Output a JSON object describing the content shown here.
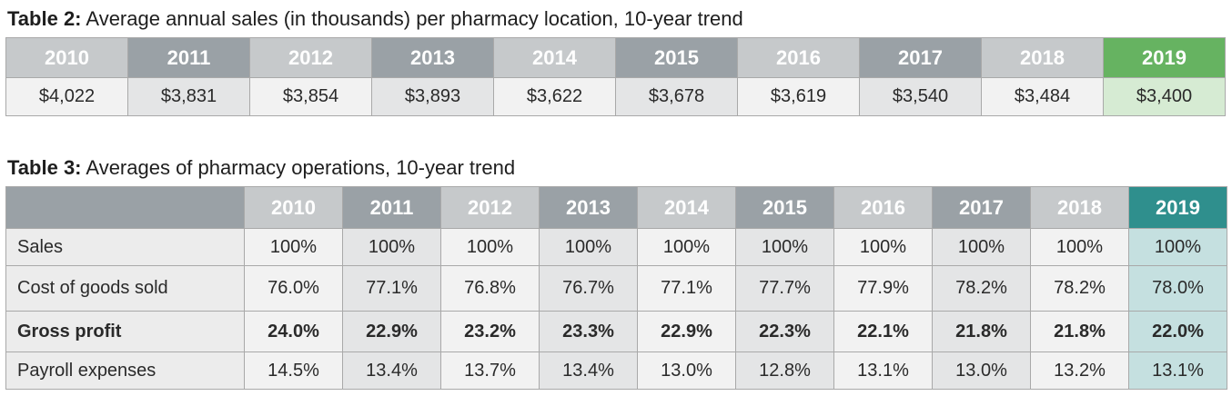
{
  "table2": {
    "caption_label": "Table 2:",
    "caption_text": " Average annual sales (in thousands) per pharmacy location, 10-year trend",
    "years": [
      "2010",
      "2011",
      "2012",
      "2013",
      "2014",
      "2015",
      "2016",
      "2017",
      "2018",
      "2019"
    ],
    "values": [
      "$4,022",
      "$3,831",
      "$3,854",
      "$3,893",
      "$3,622",
      "$3,678",
      "$3,619",
      "$3,540",
      "$3,484",
      "$3,400"
    ],
    "highlight_color": "#66b361"
  },
  "table3": {
    "caption_label": "Table 3:",
    "caption_text": " Averages of pharmacy operations, 10-year trend",
    "years": [
      "2010",
      "2011",
      "2012",
      "2013",
      "2014",
      "2015",
      "2016",
      "2017",
      "2018",
      "2019"
    ],
    "highlight_color": "#2f8f8d",
    "rows": [
      {
        "label": "Sales",
        "bold": false,
        "values": [
          "100%",
          "100%",
          "100%",
          "100%",
          "100%",
          "100%",
          "100%",
          "100%",
          "100%",
          "100%"
        ]
      },
      {
        "label": "Cost of goods sold",
        "bold": false,
        "values": [
          "76.0%",
          "77.1%",
          "76.8%",
          "76.7%",
          "77.1%",
          "77.7%",
          "77.9%",
          "78.2%",
          "78.2%",
          "78.0%"
        ]
      },
      {
        "label": "Gross profit",
        "bold": true,
        "values": [
          "24.0%",
          "22.9%",
          "23.2%",
          "23.3%",
          "22.9%",
          "22.3%",
          "22.1%",
          "21.8%",
          "21.8%",
          "22.0%"
        ]
      },
      {
        "label": "Payroll expenses",
        "bold": false,
        "values": [
          "14.5%",
          "13.4%",
          "13.7%",
          "13.4%",
          "13.0%",
          "12.8%",
          "13.1%",
          "13.0%",
          "13.2%",
          "13.1%"
        ]
      }
    ]
  }
}
